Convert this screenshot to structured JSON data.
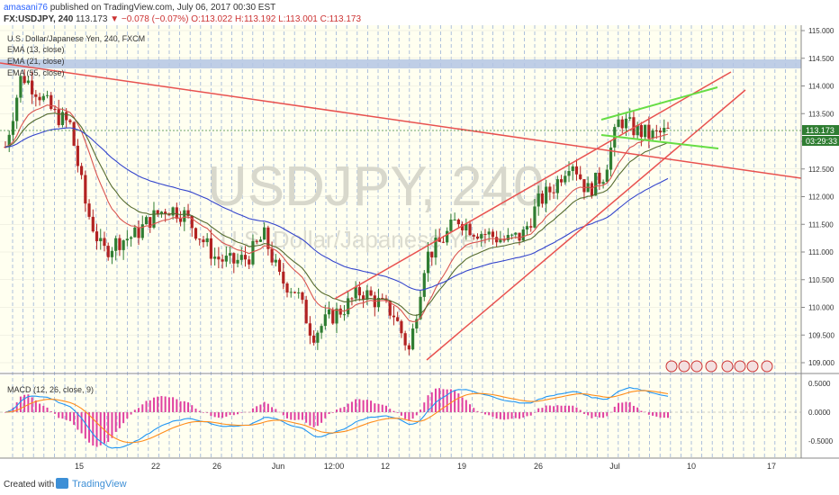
{
  "header": {
    "author": "amasani76",
    "published_text": "published on TradingView.com, July 06, 2017 00:30 EST",
    "symbol_line": "FX:USDJPY, 240",
    "last_value": "113.173",
    "change": "−0.078 (−0.07%)",
    "ohlc": "O:113.022 H:113.192 L:113.001 C:113.173"
  },
  "chart": {
    "instrument_label": "U.S. Dollar/Japanese Yen, 240, FXCM",
    "indicators": [
      "EMA (13, close)",
      "EMA (21, close)",
      "EMA (55, close)"
    ],
    "watermark_symbol": "USDJPY, 240",
    "watermark_name": "U.S. Dollar/Japanese Yen",
    "price_axis_ticks": [
      "115.000",
      "114.500",
      "114.000",
      "113.500",
      "113.000",
      "112.500",
      "112.000",
      "111.500",
      "111.000",
      "110.500",
      "110.000",
      "109.500",
      "109.000"
    ],
    "current_price": "113.173",
    "countdown": "03:29:33",
    "time_axis_ticks": [
      "15",
      "22",
      "26",
      "Jun",
      "12:00",
      "12",
      "19",
      "26",
      "Jul",
      "10",
      "17"
    ],
    "macd_label": "MACD (12, 26, close, 9)",
    "macd_axis_ticks": [
      "0.5000",
      "0.0000",
      "-0.5000"
    ],
    "colors": {
      "ema13": "#d9534f",
      "ema21": "#556b2f",
      "ema55": "#3344cc",
      "trendline": "#e8514f",
      "channel": "#66dd44",
      "up_candle": "#2f7d32",
      "down_candle": "#b22222",
      "macd_line": "#2196f3",
      "signal_line": "#ff8c1a",
      "histogram": "#e040a0",
      "chart_bg": "#fffff0"
    }
  },
  "chart_data": {
    "type": "line",
    "price_ylim": [
      108.8,
      115.0
    ],
    "macd_ylim": [
      -0.65,
      0.55
    ],
    "grid": true,
    "legend_placement": "top-left",
    "x": [
      "15",
      "22",
      "26",
      "Jun",
      "12:00",
      "12",
      "19",
      "26",
      "Jul",
      "10",
      "17"
    ],
    "close_path": [
      {
        "x": "May 10",
        "y": 112.9
      },
      {
        "x": "May 11",
        "y": 114.2
      },
      {
        "x": "May 12",
        "y": 113.9
      },
      {
        "x": "May 15",
        "y": 113.5
      },
      {
        "x": "May 16",
        "y": 113.3
      },
      {
        "x": "May 17",
        "y": 111.8
      },
      {
        "x": "May 18",
        "y": 111.0
      },
      {
        "x": "May 19",
        "y": 111.2
      },
      {
        "x": "May 22",
        "y": 111.3
      },
      {
        "x": "May 23",
        "y": 111.6
      },
      {
        "x": "May 24",
        "y": 111.8
      },
      {
        "x": "May 25",
        "y": 111.7
      },
      {
        "x": "May 26",
        "y": 111.3
      },
      {
        "x": "May 29",
        "y": 110.9
      },
      {
        "x": "May 30",
        "y": 110.8
      },
      {
        "x": "May 31",
        "y": 110.9
      },
      {
        "x": "Jun 1",
        "y": 111.3
      },
      {
        "x": "Jun 2",
        "y": 110.5
      },
      {
        "x": "Jun 5",
        "y": 110.3
      },
      {
        "x": "Jun 6",
        "y": 109.5
      },
      {
        "x": "Jun 7",
        "y": 109.8
      },
      {
        "x": "Jun 8",
        "y": 110.0
      },
      {
        "x": "Jun 9",
        "y": 110.3
      },
      {
        "x": "Jun 12",
        "y": 110.1
      },
      {
        "x": "Jun 13",
        "y": 109.9
      },
      {
        "x": "Jun 14",
        "y": 109.2
      },
      {
        "x": "Jun 15",
        "y": 110.9
      },
      {
        "x": "Jun 16",
        "y": 111.2
      },
      {
        "x": "Jun 19",
        "y": 111.6
      },
      {
        "x": "Jun 20",
        "y": 111.4
      },
      {
        "x": "Jun 21",
        "y": 111.3
      },
      {
        "x": "Jun 22",
        "y": 111.2
      },
      {
        "x": "Jun 23",
        "y": 111.3
      },
      {
        "x": "Jun 26",
        "y": 111.9
      },
      {
        "x": "Jun 27",
        "y": 112.2
      },
      {
        "x": "Jun 28",
        "y": 112.7
      },
      {
        "x": "Jun 29",
        "y": 112.1
      },
      {
        "x": "Jun 30",
        "y": 112.4
      },
      {
        "x": "Jul 3",
        "y": 113.4
      },
      {
        "x": "Jul 4",
        "y": 113.2
      },
      {
        "x": "Jul 5",
        "y": 113.1
      },
      {
        "x": "Jul 6",
        "y": 113.173
      }
    ]
  }
}
